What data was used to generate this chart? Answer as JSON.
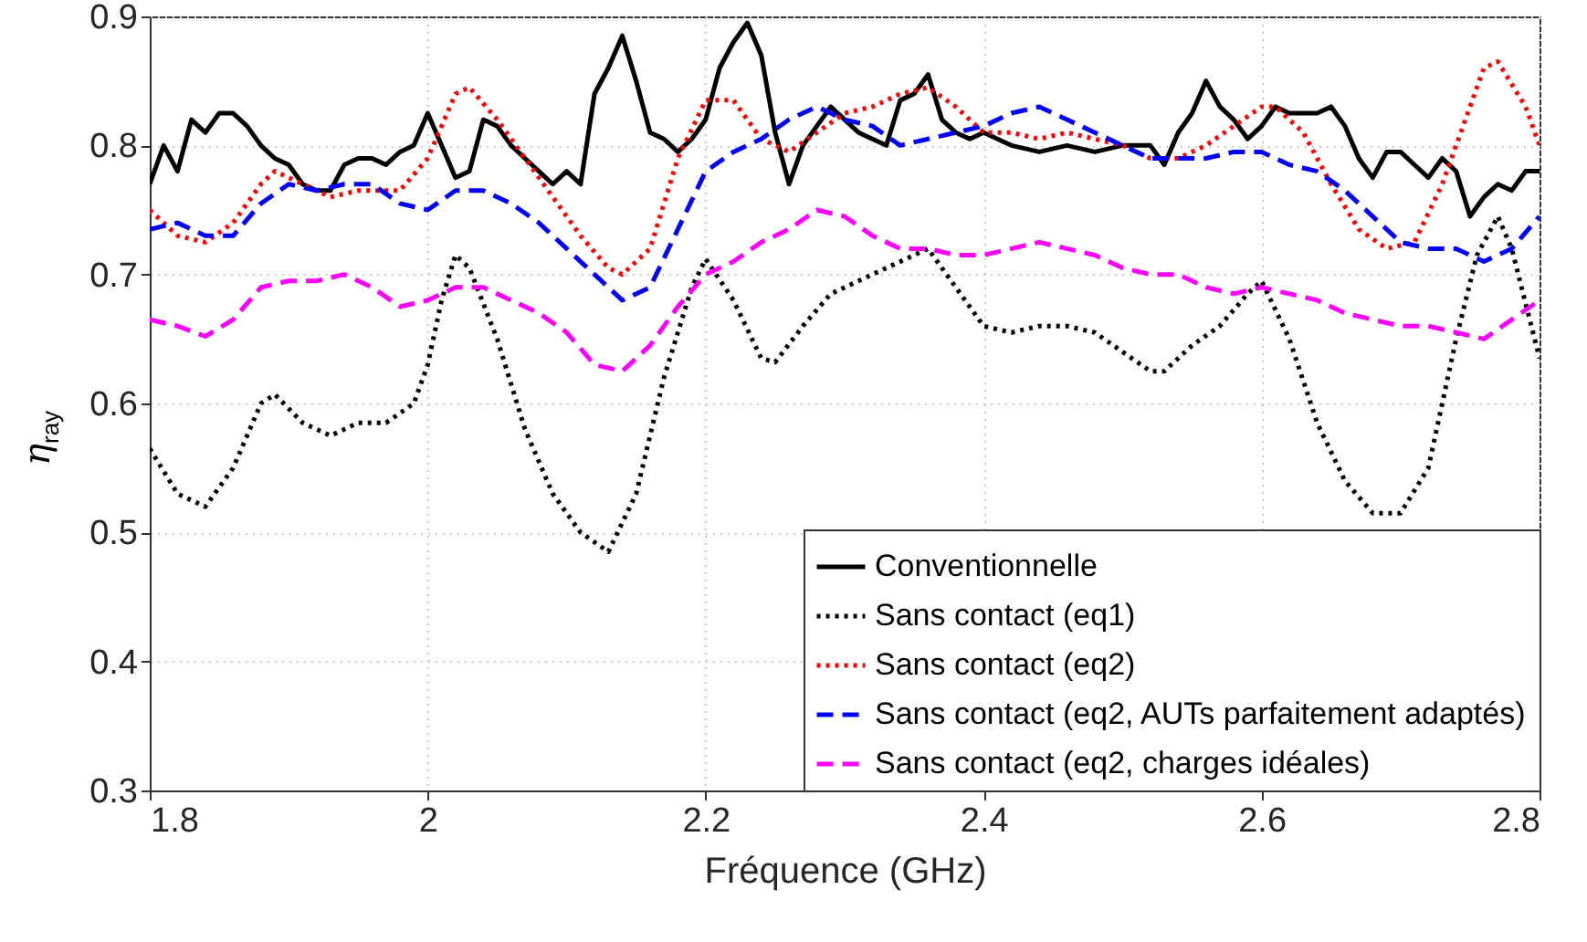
{
  "chart_data": {
    "type": "line",
    "xlabel": "Fréquence (GHz)",
    "ylabel": "η$_{ray}$",
    "xlim": [
      1.8,
      2.8
    ],
    "xticks": [
      1.8,
      2,
      2.2,
      2.4,
      2.6,
      2.8
    ],
    "ylim": [
      0.3,
      0.9
    ],
    "yticks": [
      0.3,
      0.4,
      0.5,
      0.6,
      0.7,
      0.8,
      0.9
    ],
    "grid": true,
    "legend": "bottom right",
    "series": [
      {
        "name": "Conventionnelle",
        "color": "#000000",
        "line_style": "solid",
        "x": [
          1.8,
          1.81,
          1.82,
          1.83,
          1.84,
          1.85,
          1.86,
          1.87,
          1.88,
          1.89,
          1.9,
          1.91,
          1.92,
          1.93,
          1.94,
          1.95,
          1.96,
          1.97,
          1.98,
          1.99,
          2.0,
          2.01,
          2.02,
          2.03,
          2.04,
          2.05,
          2.06,
          2.07,
          2.08,
          2.09,
          2.1,
          2.11,
          2.12,
          2.13,
          2.14,
          2.15,
          2.16,
          2.17,
          2.18,
          2.19,
          2.2,
          2.21,
          2.22,
          2.23,
          2.24,
          2.25,
          2.26,
          2.27,
          2.28,
          2.29,
          2.3,
          2.31,
          2.32,
          2.33,
          2.34,
          2.35,
          2.36,
          2.37,
          2.38,
          2.39,
          2.4,
          2.42,
          2.44,
          2.46,
          2.48,
          2.5,
          2.52,
          2.53,
          2.54,
          2.55,
          2.56,
          2.57,
          2.58,
          2.59,
          2.6,
          2.61,
          2.62,
          2.64,
          2.65,
          2.66,
          2.67,
          2.68,
          2.69,
          2.7,
          2.71,
          2.72,
          2.73,
          2.74,
          2.75,
          2.76,
          2.77,
          2.78,
          2.79,
          2.8
        ],
        "values": [
          0.77,
          0.8,
          0.78,
          0.82,
          0.81,
          0.825,
          0.825,
          0.815,
          0.8,
          0.79,
          0.785,
          0.77,
          0.765,
          0.765,
          0.785,
          0.79,
          0.79,
          0.785,
          0.795,
          0.8,
          0.825,
          0.8,
          0.775,
          0.78,
          0.82,
          0.815,
          0.8,
          0.79,
          0.78,
          0.77,
          0.78,
          0.77,
          0.84,
          0.86,
          0.885,
          0.85,
          0.81,
          0.805,
          0.795,
          0.805,
          0.82,
          0.86,
          0.88,
          0.895,
          0.87,
          0.81,
          0.77,
          0.8,
          0.815,
          0.83,
          0.82,
          0.81,
          0.805,
          0.8,
          0.835,
          0.84,
          0.855,
          0.82,
          0.81,
          0.805,
          0.81,
          0.8,
          0.795,
          0.8,
          0.795,
          0.8,
          0.8,
          0.785,
          0.81,
          0.825,
          0.85,
          0.83,
          0.82,
          0.805,
          0.815,
          0.83,
          0.825,
          0.825,
          0.83,
          0.815,
          0.79,
          0.775,
          0.795,
          0.795,
          0.785,
          0.775,
          0.79,
          0.78,
          0.745,
          0.76,
          0.77,
          0.765,
          0.78,
          0.78
        ]
      },
      {
        "name": "Sans contact (eq1)",
        "color": "#000000",
        "line_style": "dotted",
        "x": [
          1.8,
          1.82,
          1.84,
          1.86,
          1.88,
          1.89,
          1.91,
          1.93,
          1.95,
          1.97,
          1.99,
          2.0,
          2.01,
          2.02,
          2.03,
          2.05,
          2.07,
          2.09,
          2.11,
          2.13,
          2.15,
          2.17,
          2.19,
          2.2,
          2.22,
          2.24,
          2.25,
          2.27,
          2.29,
          2.31,
          2.33,
          2.36,
          2.38,
          2.4,
          2.42,
          2.44,
          2.46,
          2.48,
          2.5,
          2.52,
          2.53,
          2.55,
          2.57,
          2.59,
          2.6,
          2.62,
          2.64,
          2.66,
          2.68,
          2.7,
          2.72,
          2.74,
          2.755,
          2.77,
          2.78,
          2.8
        ],
        "values": [
          0.565,
          0.53,
          0.52,
          0.55,
          0.6,
          0.607,
          0.585,
          0.575,
          0.585,
          0.585,
          0.6,
          0.63,
          0.68,
          0.715,
          0.705,
          0.65,
          0.58,
          0.53,
          0.5,
          0.485,
          0.53,
          0.62,
          0.69,
          0.712,
          0.68,
          0.635,
          0.632,
          0.66,
          0.685,
          0.695,
          0.705,
          0.72,
          0.69,
          0.66,
          0.655,
          0.66,
          0.66,
          0.655,
          0.64,
          0.625,
          0.625,
          0.645,
          0.66,
          0.685,
          0.695,
          0.65,
          0.585,
          0.54,
          0.515,
          0.515,
          0.55,
          0.65,
          0.715,
          0.745,
          0.72,
          0.635
        ]
      },
      {
        "name": "Sans contact (eq2)",
        "color": "#ff0000",
        "line_style": "dotted",
        "x": [
          1.8,
          1.82,
          1.84,
          1.86,
          1.88,
          1.89,
          1.91,
          1.93,
          1.95,
          1.98,
          2.0,
          2.02,
          2.03,
          2.05,
          2.07,
          2.09,
          2.11,
          2.13,
          2.14,
          2.16,
          2.18,
          2.2,
          2.22,
          2.24,
          2.26,
          2.28,
          2.3,
          2.32,
          2.34,
          2.36,
          2.38,
          2.4,
          2.42,
          2.44,
          2.46,
          2.48,
          2.5,
          2.52,
          2.54,
          2.56,
          2.58,
          2.6,
          2.61,
          2.63,
          2.65,
          2.67,
          2.69,
          2.71,
          2.73,
          2.75,
          2.76,
          2.77,
          2.79,
          2.8
        ],
        "values": [
          0.75,
          0.73,
          0.725,
          0.74,
          0.77,
          0.78,
          0.77,
          0.76,
          0.765,
          0.765,
          0.79,
          0.84,
          0.845,
          0.82,
          0.79,
          0.76,
          0.73,
          0.705,
          0.7,
          0.72,
          0.79,
          0.835,
          0.835,
          0.805,
          0.795,
          0.81,
          0.825,
          0.83,
          0.84,
          0.845,
          0.83,
          0.81,
          0.81,
          0.805,
          0.81,
          0.805,
          0.8,
          0.79,
          0.79,
          0.8,
          0.815,
          0.83,
          0.83,
          0.81,
          0.77,
          0.735,
          0.72,
          0.725,
          0.77,
          0.83,
          0.86,
          0.865,
          0.83,
          0.8
        ]
      },
      {
        "name": "Sans contact (eq2, AUTs parfaitement adaptés)",
        "color": "#0000ff",
        "line_style": "dashed",
        "x": [
          1.8,
          1.82,
          1.84,
          1.86,
          1.88,
          1.9,
          1.92,
          1.94,
          1.96,
          1.98,
          2.0,
          2.02,
          2.04,
          2.06,
          2.08,
          2.1,
          2.12,
          2.14,
          2.16,
          2.18,
          2.2,
          2.22,
          2.24,
          2.26,
          2.28,
          2.3,
          2.32,
          2.34,
          2.36,
          2.38,
          2.4,
          2.42,
          2.44,
          2.46,
          2.48,
          2.5,
          2.52,
          2.54,
          2.56,
          2.58,
          2.6,
          2.62,
          2.64,
          2.66,
          2.68,
          2.7,
          2.72,
          2.74,
          2.76,
          2.78,
          2.8
        ],
        "values": [
          0.735,
          0.74,
          0.73,
          0.73,
          0.755,
          0.77,
          0.765,
          0.77,
          0.77,
          0.755,
          0.75,
          0.765,
          0.765,
          0.755,
          0.74,
          0.72,
          0.7,
          0.68,
          0.69,
          0.735,
          0.78,
          0.795,
          0.805,
          0.82,
          0.83,
          0.82,
          0.815,
          0.8,
          0.805,
          0.81,
          0.815,
          0.825,
          0.83,
          0.82,
          0.81,
          0.8,
          0.79,
          0.79,
          0.79,
          0.795,
          0.795,
          0.785,
          0.78,
          0.765,
          0.745,
          0.725,
          0.72,
          0.72,
          0.71,
          0.72,
          0.745
        ]
      },
      {
        "name": "Sans contact (eq2, charges idéales)",
        "color": "#ff00ff",
        "line_style": "dashed",
        "x": [
          1.8,
          1.82,
          1.84,
          1.86,
          1.88,
          1.9,
          1.92,
          1.94,
          1.96,
          1.98,
          2.0,
          2.02,
          2.04,
          2.06,
          2.08,
          2.1,
          2.12,
          2.14,
          2.16,
          2.18,
          2.2,
          2.22,
          2.24,
          2.26,
          2.28,
          2.3,
          2.32,
          2.34,
          2.36,
          2.38,
          2.4,
          2.42,
          2.44,
          2.46,
          2.48,
          2.5,
          2.52,
          2.54,
          2.56,
          2.58,
          2.6,
          2.62,
          2.64,
          2.66,
          2.68,
          2.7,
          2.72,
          2.74,
          2.76,
          2.78,
          2.8
        ],
        "values": [
          0.665,
          0.66,
          0.652,
          0.665,
          0.69,
          0.695,
          0.695,
          0.7,
          0.69,
          0.675,
          0.68,
          0.69,
          0.69,
          0.68,
          0.67,
          0.655,
          0.63,
          0.625,
          0.645,
          0.675,
          0.7,
          0.71,
          0.725,
          0.735,
          0.75,
          0.745,
          0.73,
          0.72,
          0.72,
          0.715,
          0.715,
          0.72,
          0.725,
          0.72,
          0.715,
          0.705,
          0.7,
          0.7,
          0.69,
          0.685,
          0.69,
          0.685,
          0.68,
          0.67,
          0.665,
          0.66,
          0.66,
          0.655,
          0.65,
          0.665,
          0.68
        ]
      }
    ]
  }
}
